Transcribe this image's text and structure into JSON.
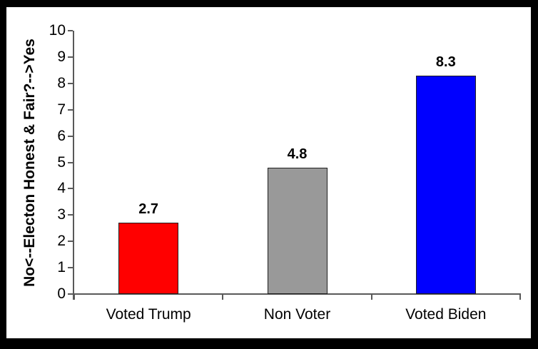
{
  "chart_data": {
    "type": "bar",
    "title": "",
    "xlabel": "",
    "ylabel": "No<--Electon Honest & Fair?-->Yes",
    "categories": [
      "Voted Trump",
      "Non Voter",
      "Voted Biden"
    ],
    "values": [
      2.7,
      4.8,
      8.3
    ],
    "value_labels": [
      "2.7",
      "4.8",
      "8.3"
    ],
    "bar_colors": [
      "#ff0000",
      "#999999",
      "#0000ff"
    ],
    "ylim": [
      0,
      10
    ],
    "ytick_step": 1,
    "grid": false,
    "legend": false,
    "colors": {
      "frame_background": "#000000",
      "panel_background": "#ffffff",
      "axis": "#595959",
      "text": "#000000"
    }
  }
}
